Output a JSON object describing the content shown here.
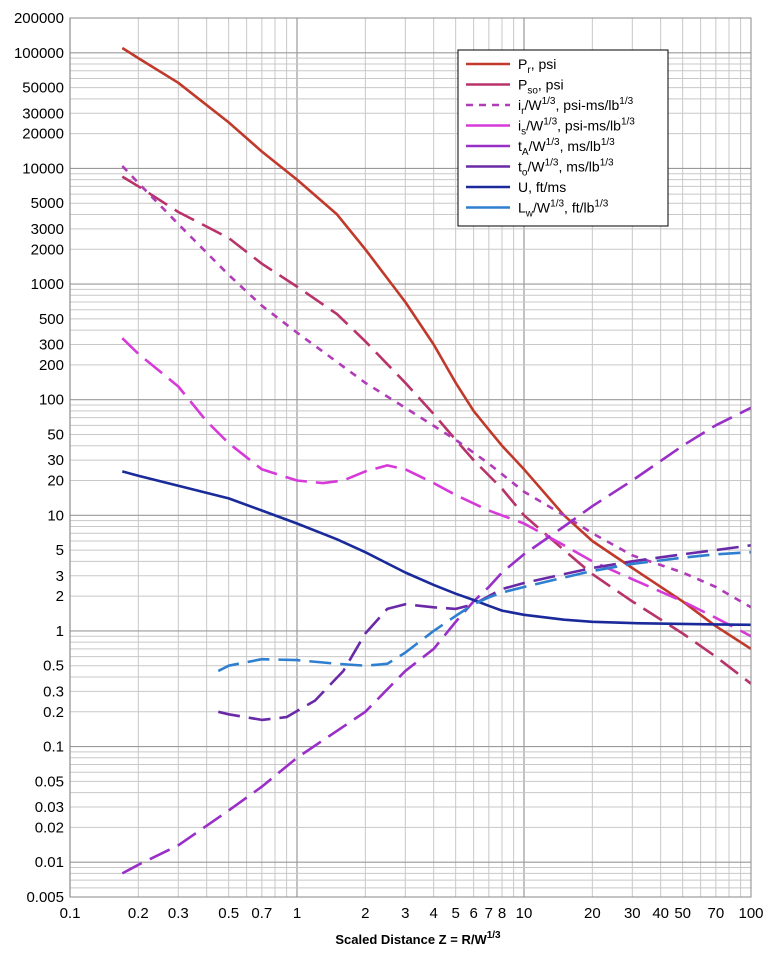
{
  "chart_data": {
    "type": "line",
    "xscale": "log",
    "yscale": "log",
    "xlim": [
      0.1,
      100
    ],
    "ylim": [
      0.005,
      200000
    ],
    "grid": true,
    "legend_position": "top-right",
    "xlabel": {
      "text": "Scaled Distance   Z = R/W",
      "sup": "1/3"
    },
    "x_ticks": [
      {
        "v": 0.1,
        "t": "0.1"
      },
      {
        "v": 0.2,
        "t": "0.2"
      },
      {
        "v": 0.3,
        "t": "0.3"
      },
      {
        "v": 0.5,
        "t": "0.5"
      },
      {
        "v": 0.7,
        "t": "0.7"
      },
      {
        "v": 1,
        "t": "1"
      },
      {
        "v": 2,
        "t": "2"
      },
      {
        "v": 3,
        "t": "3"
      },
      {
        "v": 4,
        "t": "4"
      },
      {
        "v": 5,
        "t": "5"
      },
      {
        "v": 6,
        "t": "6"
      },
      {
        "v": 7,
        "t": "7"
      },
      {
        "v": 8,
        "t": "8"
      },
      {
        "v": 10,
        "t": "10"
      },
      {
        "v": 20,
        "t": "20"
      },
      {
        "v": 30,
        "t": "30"
      },
      {
        "v": 40,
        "t": "40"
      },
      {
        "v": 50,
        "t": "50"
      },
      {
        "v": 70,
        "t": "70"
      },
      {
        "v": 100,
        "t": "100"
      }
    ],
    "y_ticks": [
      {
        "v": 200000,
        "t": "200000"
      },
      {
        "v": 100000,
        "t": "100000"
      },
      {
        "v": 50000,
        "t": "50000"
      },
      {
        "v": 30000,
        "t": "30000"
      },
      {
        "v": 20000,
        "t": "20000"
      },
      {
        "v": 10000,
        "t": "10000"
      },
      {
        "v": 5000,
        "t": "5000"
      },
      {
        "v": 3000,
        "t": "3000"
      },
      {
        "v": 2000,
        "t": "2000"
      },
      {
        "v": 1000,
        "t": "1000"
      },
      {
        "v": 500,
        "t": "500"
      },
      {
        "v": 300,
        "t": "300"
      },
      {
        "v": 200,
        "t": "200"
      },
      {
        "v": 100,
        "t": "100"
      },
      {
        "v": 50,
        "t": "50"
      },
      {
        "v": 30,
        "t": "30"
      },
      {
        "v": 20,
        "t": "20"
      },
      {
        "v": 10,
        "t": "10"
      },
      {
        "v": 5,
        "t": "5"
      },
      {
        "v": 3,
        "t": "3"
      },
      {
        "v": 2,
        "t": "2"
      },
      {
        "v": 1,
        "t": "1"
      },
      {
        "v": 0.5,
        "t": "0.5"
      },
      {
        "v": 0.3,
        "t": "0.3"
      },
      {
        "v": 0.2,
        "t": "0.2"
      },
      {
        "v": 0.1,
        "t": "0.1"
      },
      {
        "v": 0.05,
        "t": "0.05"
      },
      {
        "v": 0.03,
        "t": "0.03"
      },
      {
        "v": 0.02,
        "t": "0.02"
      },
      {
        "v": 0.01,
        "t": "0.01"
      },
      {
        "v": 0.005,
        "t": "0.005"
      }
    ],
    "series": [
      {
        "key": "pr",
        "legend": [
          {
            "t": "P"
          },
          {
            "t": "r",
            "s": "sub"
          },
          {
            "t": ", psi"
          }
        ],
        "color": "#c0392b",
        "dash": "solid",
        "x": [
          0.17,
          0.2,
          0.3,
          0.5,
          0.7,
          1,
          1.5,
          2,
          3,
          4,
          5,
          6,
          7,
          8,
          10,
          15,
          20,
          30,
          50,
          70,
          100
        ],
        "y": [
          110000,
          90000,
          55000,
          25000,
          14000,
          8000,
          4000,
          2000,
          700,
          300,
          140,
          80,
          55,
          40,
          25,
          10,
          6,
          3.5,
          1.8,
          1.1,
          0.7
        ]
      },
      {
        "key": "pso",
        "legend": [
          {
            "t": "P"
          },
          {
            "t": "so",
            "s": "sub"
          },
          {
            "t": ", psi"
          }
        ],
        "color": "#b8336a",
        "dash": "long",
        "x": [
          0.17,
          0.2,
          0.3,
          0.5,
          0.7,
          1,
          1.5,
          2,
          3,
          4,
          5,
          6,
          8,
          10,
          15,
          20,
          30,
          50,
          70,
          100
        ],
        "y": [
          8500,
          7000,
          4200,
          2500,
          1500,
          950,
          550,
          320,
          140,
          75,
          45,
          30,
          17,
          10,
          5,
          3.1,
          1.8,
          0.95,
          0.6,
          0.35
        ]
      },
      {
        "key": "ir",
        "legend": [
          {
            "t": "i"
          },
          {
            "t": "r",
            "s": "sub"
          },
          {
            "t": "/W"
          },
          {
            "t": "1/3",
            "s": "sup"
          },
          {
            "t": ", psi-ms/lb"
          },
          {
            "t": "1/3",
            "s": "sup"
          }
        ],
        "color": "#b03cb8",
        "dash": "short",
        "x": [
          0.17,
          0.2,
          0.3,
          0.5,
          0.7,
          1,
          2,
          3,
          5,
          7,
          10,
          15,
          20,
          30,
          50,
          70,
          100
        ],
        "y": [
          10500,
          7500,
          3300,
          1200,
          650,
          380,
          140,
          85,
          45,
          28,
          16,
          10,
          7,
          4.5,
          3.2,
          2.4,
          1.6
        ]
      },
      {
        "key": "is",
        "legend": [
          {
            "t": "i"
          },
          {
            "t": "s",
            "s": "sub"
          },
          {
            "t": "/W"
          },
          {
            "t": "1/3",
            "s": "sup"
          },
          {
            "t": ", psi-ms/lb"
          },
          {
            "t": "1/3",
            "s": "sup"
          }
        ],
        "color": "#d63ad8",
        "dash": "long",
        "x": [
          0.17,
          0.2,
          0.3,
          0.4,
          0.5,
          0.7,
          1,
          1.3,
          1.6,
          2,
          2.5,
          3,
          4,
          5,
          7,
          10,
          15,
          20,
          30,
          50,
          70,
          100
        ],
        "y": [
          340,
          250,
          130,
          65,
          42,
          25,
          20,
          19,
          20,
          24,
          27,
          25,
          19,
          15,
          11,
          8.5,
          5.5,
          4,
          2.8,
          1.8,
          1.3,
          0.9
        ]
      },
      {
        "key": "ta",
        "legend": [
          {
            "t": "t"
          },
          {
            "t": "A",
            "s": "sub"
          },
          {
            "t": "/W"
          },
          {
            "t": "1/3",
            "s": "sup"
          },
          {
            "t": ", ms/lb"
          },
          {
            "t": "1/3",
            "s": "sup"
          }
        ],
        "color": "#9a2fc8",
        "dash": "long",
        "x": [
          0.17,
          0.2,
          0.3,
          0.5,
          0.7,
          1,
          2,
          3,
          4,
          5,
          6,
          7,
          8,
          10,
          15,
          20,
          30,
          50,
          70,
          100
        ],
        "y": [
          0.008,
          0.0095,
          0.014,
          0.028,
          0.045,
          0.08,
          0.2,
          0.45,
          0.7,
          1.2,
          1.8,
          2.4,
          3.2,
          4.6,
          8,
          12,
          20,
          40,
          60,
          85
        ]
      },
      {
        "key": "to",
        "legend": [
          {
            "t": "t"
          },
          {
            "t": "o",
            "s": "sub"
          },
          {
            "t": "/W"
          },
          {
            "t": "1/3",
            "s": "sup"
          },
          {
            "t": ", ms/lb"
          },
          {
            "t": "1/3",
            "s": "sup"
          }
        ],
        "color": "#6a2aa8",
        "dash": "long",
        "x": [
          0.45,
          0.5,
          0.7,
          0.9,
          1.2,
          1.6,
          2,
          2.5,
          3,
          4,
          5,
          6,
          7,
          8,
          10,
          15,
          20,
          30,
          50,
          70,
          100
        ],
        "y": [
          0.2,
          0.19,
          0.17,
          0.18,
          0.25,
          0.45,
          0.95,
          1.55,
          1.7,
          1.6,
          1.55,
          1.7,
          2,
          2.3,
          2.6,
          3.1,
          3.5,
          4,
          4.6,
          5,
          5.5
        ]
      },
      {
        "key": "u",
        "legend": [
          {
            "t": "U, ft/ms"
          }
        ],
        "color": "#1a2a9a",
        "dash": "solid",
        "x": [
          0.17,
          0.2,
          0.3,
          0.5,
          0.7,
          1,
          1.5,
          2,
          3,
          4,
          5,
          6,
          7,
          8,
          10,
          15,
          20,
          30,
          50,
          70,
          100
        ],
        "y": [
          24,
          22,
          18,
          14,
          11,
          8.5,
          6.2,
          4.8,
          3.2,
          2.5,
          2.1,
          1.85,
          1.65,
          1.5,
          1.38,
          1.25,
          1.2,
          1.17,
          1.15,
          1.14,
          1.13
        ]
      },
      {
        "key": "lw",
        "legend": [
          {
            "t": "L"
          },
          {
            "t": "w",
            "s": "sub"
          },
          {
            "t": "/W"
          },
          {
            "t": "1/3",
            "s": "sup"
          },
          {
            "t": ", ft/lb"
          },
          {
            "t": "1/3",
            "s": "sup"
          }
        ],
        "color": "#2f7fd0",
        "dash": "long",
        "x": [
          0.45,
          0.5,
          0.7,
          1,
          1.5,
          2,
          2.5,
          3,
          4,
          5,
          6,
          7,
          8,
          10,
          15,
          20,
          30,
          50,
          70,
          100
        ],
        "y": [
          0.45,
          0.5,
          0.57,
          0.56,
          0.52,
          0.5,
          0.52,
          0.65,
          1,
          1.35,
          1.7,
          1.95,
          2.15,
          2.4,
          2.9,
          3.3,
          3.8,
          4.3,
          4.6,
          4.8
        ]
      }
    ]
  }
}
